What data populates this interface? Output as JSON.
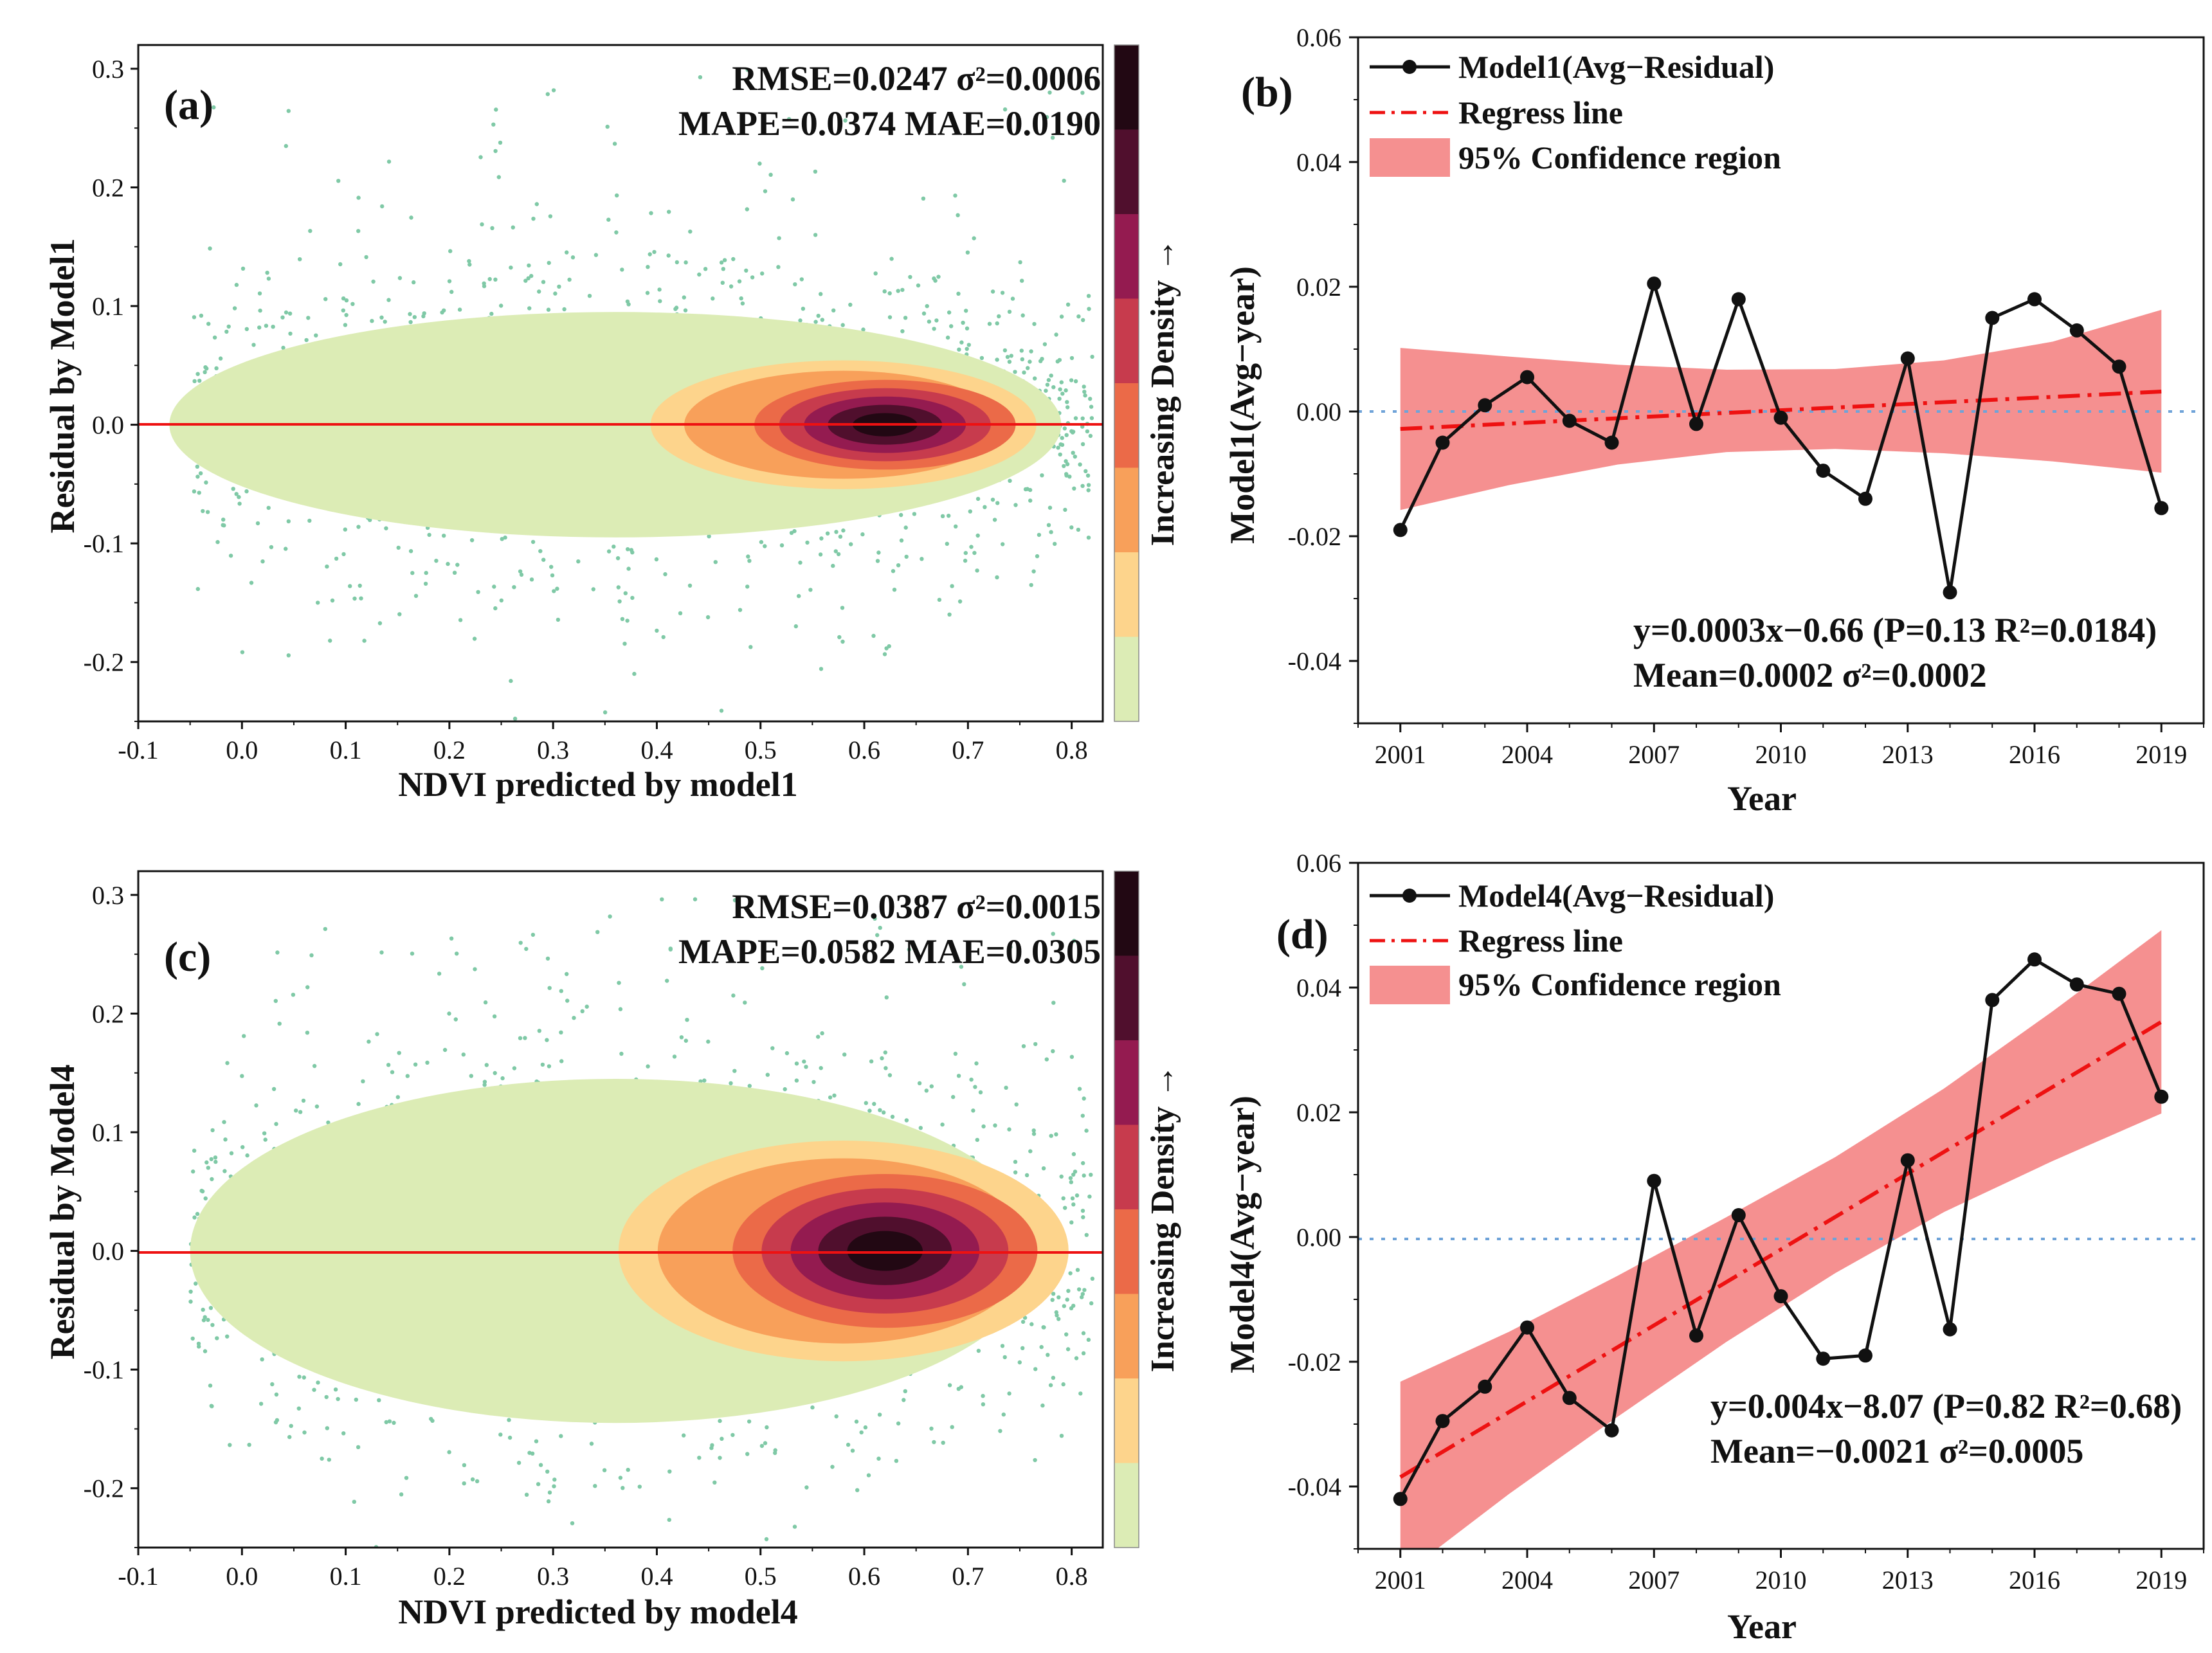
{
  "colors": {
    "density": [
      "#7fc9a6",
      "#dcecb5",
      "#fdd48c",
      "#f8a05a",
      "#eb6a48",
      "#c73b4d",
      "#941b50",
      "#500f2d",
      "#220813"
    ],
    "line": "#111111",
    "regress": "#ee1111",
    "confidence": "#f59090",
    "zero_line_scatter": "#ee1111",
    "zero_line_ts": "#6fa3d8"
  },
  "chart_data": [
    {
      "panel": "a",
      "type": "scatter",
      "label": "(a)",
      "xlabel": "NDVI predicted by model1",
      "ylabel": "Residual by Model1",
      "xlim": [
        -0.1,
        0.83
      ],
      "ylim": [
        -0.25,
        0.32
      ],
      "xticks": [
        "-0.1",
        "0.0",
        "0.1",
        "0.2",
        "0.3",
        "0.4",
        "0.5",
        "0.6",
        "0.7",
        "0.8"
      ],
      "yticks": [
        "0.3",
        "0.2",
        "0.1",
        "0.0",
        "-0.1",
        "-0.2"
      ],
      "stats": [
        "RMSE=0.0247 σ²=0.0006",
        "MAPE=0.0374 MAE=0.0190"
      ],
      "colorbar_label": "Increasing Density →",
      "density_center": [
        0.62,
        0.0
      ],
      "density_spread": [
        0.12,
        0.035
      ],
      "reference_line_y": 0.0
    },
    {
      "panel": "b",
      "type": "line",
      "label": "(b)",
      "xlabel": "Year",
      "ylabel": "Model1(Avg−year)",
      "xlim": [
        2000,
        2020
      ],
      "ylim": [
        -0.05,
        0.06
      ],
      "xticks": [
        "2001",
        "2004",
        "2007",
        "2010",
        "2013",
        "2016",
        "2019"
      ],
      "yticks": [
        "0.06",
        "0.04",
        "0.02",
        "0.00",
        "-0.02",
        "-0.04"
      ],
      "legend": [
        "Model1(Avg−Residual)",
        "Regress line",
        "95% Confidence region"
      ],
      "annotation": [
        "y=0.0003x−0.66 (P=0.13 R²=0.0184)",
        "Mean=0.0002 σ²=0.0002"
      ],
      "x": [
        2001,
        2002,
        2003,
        2004,
        2005,
        2006,
        2007,
        2008,
        2009,
        2010,
        2011,
        2012,
        2013,
        2014,
        2015,
        2016,
        2017,
        2018,
        2019
      ],
      "y": [
        -0.019,
        -0.005,
        0.001,
        0.0055,
        -0.0015,
        -0.005,
        0.0205,
        -0.002,
        0.018,
        -0.001,
        -0.0095,
        -0.014,
        0.0085,
        -0.029,
        0.015,
        0.018,
        0.013,
        0.0072,
        -0.0155
      ],
      "regression": {
        "x": [
          2001,
          2019
        ],
        "y": [
          -0.0028,
          0.0032
        ]
      },
      "confidence_upper": [
        0.0102,
        0.0088,
        0.0075,
        0.0067,
        0.0068,
        0.0082,
        0.0112,
        0.0163
      ],
      "confidence_lower": [
        -0.0158,
        -0.0118,
        -0.0085,
        -0.0065,
        -0.006,
        -0.0067,
        -0.008,
        -0.0098
      ],
      "reference_line_y": 0.0
    },
    {
      "panel": "c",
      "type": "scatter",
      "label": "(c)",
      "xlabel": "NDVI predicted by model4",
      "ylabel": "Residual by Model4",
      "xlim": [
        -0.1,
        0.83
      ],
      "ylim": [
        -0.25,
        0.32
      ],
      "xticks": [
        "-0.1",
        "0.0",
        "0.1",
        "0.2",
        "0.3",
        "0.4",
        "0.5",
        "0.6",
        "0.7",
        "0.8"
      ],
      "yticks": [
        "0.3",
        "0.2",
        "0.1",
        "0.0",
        "-0.1",
        "-0.2"
      ],
      "stats": [
        "RMSE=0.0387 σ²=0.0015",
        "MAPE=0.0582 MAE=0.0305"
      ],
      "colorbar_label": "Increasing Density →",
      "density_center": [
        0.62,
        0.0
      ],
      "density_spread": [
        0.14,
        0.06
      ],
      "reference_line_y": 0.0
    },
    {
      "panel": "d",
      "type": "line",
      "label": "(d)",
      "xlabel": "Year",
      "ylabel": "Model4(Avg−year)",
      "xlim": [
        2000,
        2020
      ],
      "ylim": [
        -0.05,
        0.06
      ],
      "xticks": [
        "2001",
        "2004",
        "2007",
        "2010",
        "2013",
        "2016",
        "2019"
      ],
      "yticks": [
        "0.06",
        "0.04",
        "0.02",
        "0.00",
        "-0.02",
        "-0.04"
      ],
      "legend": [
        "Model4(Avg−Residual)",
        "Regress line",
        "95% Confidence region"
      ],
      "annotation": [
        "y=0.004x−8.07 (P=0.82 R²=0.68)",
        "Mean=−0.0021 σ²=0.0005"
      ],
      "x": [
        2001,
        2002,
        2003,
        2004,
        2005,
        2006,
        2007,
        2008,
        2009,
        2010,
        2011,
        2012,
        2013,
        2014,
        2015,
        2016,
        2017,
        2018,
        2019
      ],
      "y": [
        -0.042,
        -0.0295,
        -0.024,
        -0.0145,
        -0.0258,
        -0.031,
        0.009,
        -0.0158,
        0.0035,
        -0.0095,
        -0.0195,
        -0.019,
        0.0123,
        -0.0148,
        0.038,
        0.0445,
        0.0405,
        0.039,
        0.0225
      ],
      "regression": {
        "x": [
          2001,
          2019
        ],
        "y": [
          -0.0385,
          0.0345
        ]
      },
      "confidence_upper": [
        -0.0232,
        -0.0152,
        -0.0062,
        0.0032,
        0.0128,
        0.0238,
        0.0362,
        0.0492
      ],
      "confidence_lower": [
        -0.0545,
        -0.0412,
        -0.0288,
        -0.0168,
        -0.0058,
        0.004,
        0.0122,
        0.0198
      ],
      "reference_line_y": 0.0
    }
  ]
}
